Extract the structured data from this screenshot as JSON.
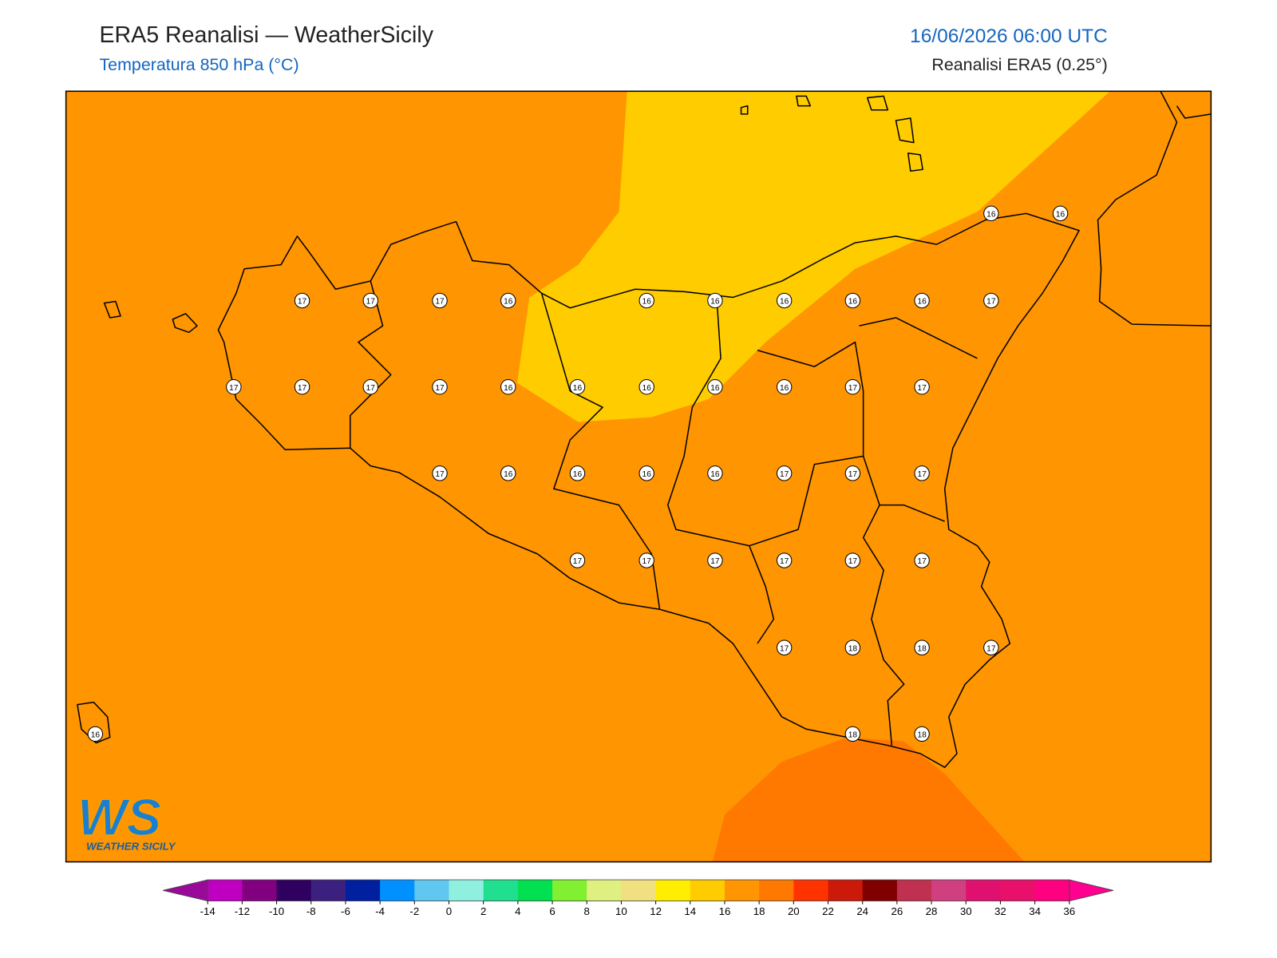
{
  "header": {
    "title": "ERA5 Reanalisi — WeatherSicily",
    "subtitle": "Temperatura 850 hPa (°C)",
    "datetime": "16/06/2026 06:00 UTC",
    "source": "Reanalisi ERA5 (0.25°)"
  },
  "logo": {
    "text": "WS",
    "subtext": "WEATHER SICILY"
  },
  "stations": [
    17,
    17,
    17,
    16,
    16,
    16,
    16,
    16,
    16,
    17,
    17,
    17,
    17,
    17,
    16,
    16,
    16,
    16,
    16,
    17,
    17,
    17,
    16,
    16,
    16,
    16,
    17,
    17,
    17,
    17,
    17,
    17,
    17,
    17,
    17,
    17,
    18,
    18,
    17,
    16,
    18,
    18,
    16,
    16
  ],
  "colorbar": {
    "ticks": [
      -14,
      -12,
      -10,
      -8,
      -6,
      -4,
      -2,
      0,
      2,
      4,
      6,
      8,
      10,
      12,
      14,
      16,
      18,
      20,
      22,
      24,
      26,
      28,
      30,
      32,
      34,
      36
    ],
    "colors": [
      "#c000c0",
      "#800080",
      "#300060",
      "#3c2080",
      "#0020a0",
      "#0090ff",
      "#60c8f0",
      "#90f0e0",
      "#20e090",
      "#00e050",
      "#80f030",
      "#e0f080",
      "#f0e080",
      "#ffee00",
      "#ffcc00",
      "#ff9500",
      "#ff7800",
      "#ff3300",
      "#cc1a0a",
      "#800000",
      "#c03050",
      "#d04080",
      "#e01070",
      "#e8106a",
      "#ff0080"
    ],
    "under_color": "#9a0a9a",
    "over_color": "#ff0090"
  }
}
